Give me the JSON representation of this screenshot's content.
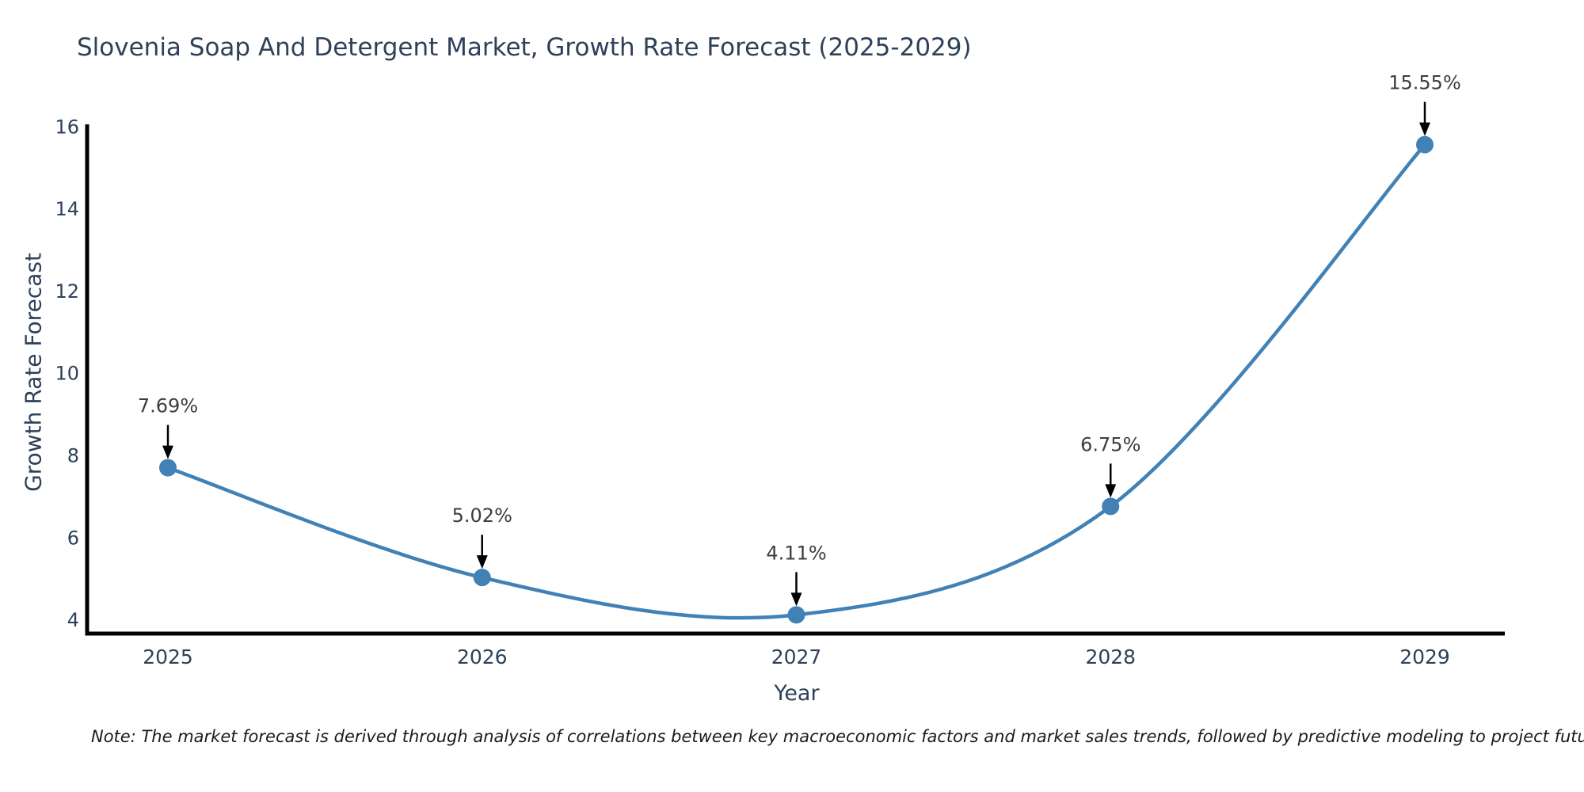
{
  "title": "Slovenia Soap And Detergent Market, Growth Rate Forecast (2025-2029)",
  "note": "Note: The market forecast is derived through analysis of correlations between key macroeconomic factors and market sales trends, followed by predictive modeling to project future sales",
  "chart_data": {
    "type": "line",
    "title": "Slovenia Soap And Detergent Market, Growth Rate Forecast (2025-2029)",
    "xlabel": "Year",
    "ylabel": "Growth Rate Forecast",
    "categories": [
      "2025",
      "2026",
      "2027",
      "2028",
      "2029"
    ],
    "series": [
      {
        "name": "Growth Rate Forecast",
        "values": [
          7.69,
          5.02,
          4.11,
          6.75,
          15.55
        ],
        "point_labels": [
          "7.69%",
          "5.02%",
          "4.11%",
          "6.75%",
          "15.55%"
        ]
      }
    ],
    "yticks": [
      4,
      6,
      8,
      10,
      12,
      14,
      16
    ],
    "ylim": [
      3.65,
      16.15
    ],
    "grid": false,
    "legend_position": "none",
    "line_smoothing": "spline",
    "colors": {
      "line": "#4181b5",
      "marker": "#4181b5",
      "axis": "#000000",
      "tick_text": "#2e4159",
      "annotation_text": "#3d3d3d",
      "annotation_arrow": "#000000"
    }
  }
}
